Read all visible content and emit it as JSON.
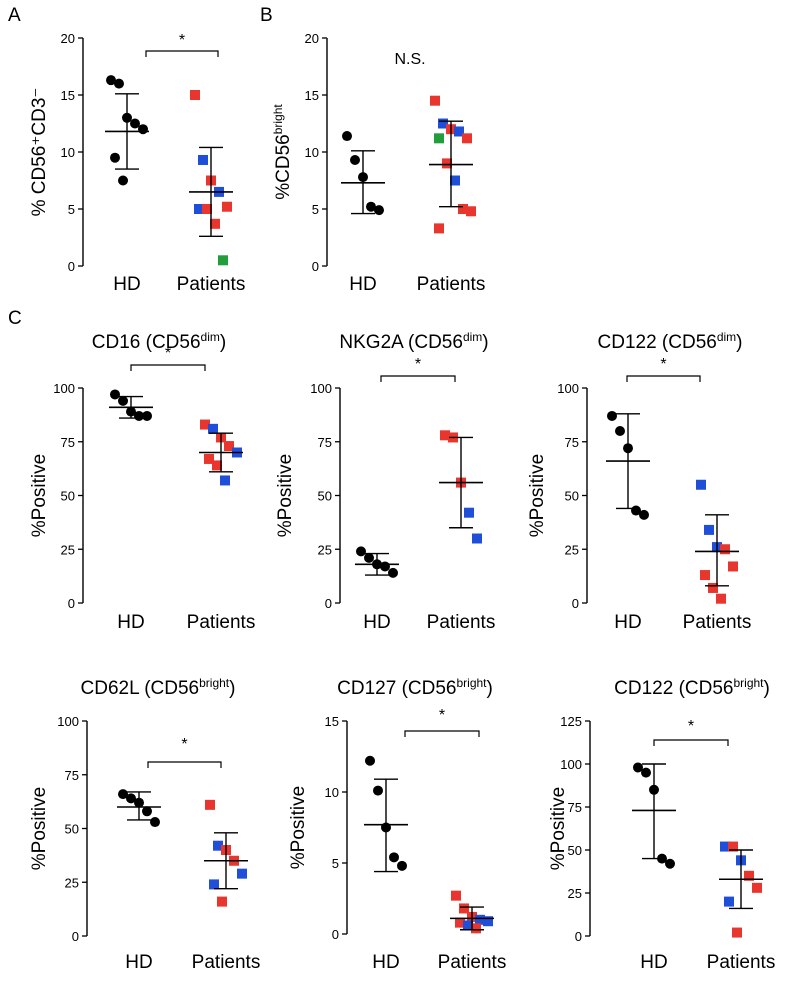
{
  "panels": [
    "A",
    "B",
    "C"
  ],
  "colors": {
    "HD": "#000000",
    "red": "#e8362e",
    "blue": "#1f4fd8",
    "green": "#1f9e3a"
  },
  "chart_data": [
    {
      "type": "scatter",
      "panel": "A",
      "title": "",
      "ylabel": "% CD56⁺CD3⁻",
      "categories": [
        "HD",
        "Patients"
      ],
      "ylim": [
        0,
        20
      ],
      "yticks": [
        0,
        5,
        10,
        15,
        20
      ],
      "significance": "*",
      "series": [
        {
          "name": "HD",
          "points": [
            {
              "v": 16.3,
              "c": "HD"
            },
            {
              "v": 16.0,
              "c": "HD"
            },
            {
              "v": 13.0,
              "c": "HD"
            },
            {
              "v": 12.5,
              "c": "HD"
            },
            {
              "v": 12.0,
              "c": "HD"
            },
            {
              "v": 9.5,
              "c": "HD"
            },
            {
              "v": 7.5,
              "c": "HD"
            }
          ],
          "mean": 11.8,
          "sd_low": 8.5,
          "sd_high": 15.1
        },
        {
          "name": "Patients",
          "points": [
            {
              "v": 15.0,
              "c": "red"
            },
            {
              "v": 9.3,
              "c": "blue"
            },
            {
              "v": 7.5,
              "c": "red"
            },
            {
              "v": 6.5,
              "c": "blue"
            },
            {
              "v": 5.2,
              "c": "red"
            },
            {
              "v": 5.0,
              "c": "blue"
            },
            {
              "v": 5.0,
              "c": "red"
            },
            {
              "v": 3.7,
              "c": "red"
            },
            {
              "v": 0.5,
              "c": "green"
            }
          ],
          "mean": 6.5,
          "sd_low": 2.6,
          "sd_high": 10.4
        }
      ]
    },
    {
      "type": "scatter",
      "panel": "B",
      "title": "",
      "ylabel": "%CD56",
      "ylabel_sup": "bright",
      "categories": [
        "HD",
        "Patients"
      ],
      "ylim": [
        0,
        20
      ],
      "yticks": [
        0,
        5,
        10,
        15,
        20
      ],
      "significance": "N.S.",
      "series": [
        {
          "name": "HD",
          "points": [
            {
              "v": 11.4,
              "c": "HD"
            },
            {
              "v": 9.3,
              "c": "HD"
            },
            {
              "v": 7.8,
              "c": "HD"
            },
            {
              "v": 5.2,
              "c": "HD"
            },
            {
              "v": 4.9,
              "c": "HD"
            }
          ],
          "mean": 7.3,
          "sd_low": 4.6,
          "sd_high": 10.1
        },
        {
          "name": "Patients",
          "points": [
            {
              "v": 14.5,
              "c": "red"
            },
            {
              "v": 12.5,
              "c": "blue"
            },
            {
              "v": 12.0,
              "c": "red"
            },
            {
              "v": 11.8,
              "c": "blue"
            },
            {
              "v": 11.2,
              "c": "red"
            },
            {
              "v": 11.2,
              "c": "green"
            },
            {
              "v": 9.0,
              "c": "red"
            },
            {
              "v": 7.5,
              "c": "blue"
            },
            {
              "v": 5.0,
              "c": "red"
            },
            {
              "v": 4.8,
              "c": "red"
            },
            {
              "v": 3.3,
              "c": "red"
            }
          ],
          "mean": 8.9,
          "sd_low": 5.2,
          "sd_high": 12.7
        }
      ]
    },
    {
      "type": "scatter",
      "panel": "C",
      "title": "CD16 (CD56",
      "title_sup": "dim",
      "title_end": ")",
      "ylabel": "%Positive",
      "categories": [
        "HD",
        "Patients"
      ],
      "ylim": [
        0,
        100
      ],
      "yticks": [
        0,
        25,
        50,
        75,
        100
      ],
      "significance": "*",
      "series": [
        {
          "name": "HD",
          "points": [
            {
              "v": 97,
              "c": "HD"
            },
            {
              "v": 94,
              "c": "HD"
            },
            {
              "v": 89,
              "c": "HD"
            },
            {
              "v": 87,
              "c": "HD"
            },
            {
              "v": 87,
              "c": "HD"
            }
          ],
          "mean": 91,
          "sd_low": 86,
          "sd_high": 96
        },
        {
          "name": "Patients",
          "points": [
            {
              "v": 83,
              "c": "red"
            },
            {
              "v": 81,
              "c": "blue"
            },
            {
              "v": 77,
              "c": "red"
            },
            {
              "v": 73,
              "c": "red"
            },
            {
              "v": 70,
              "c": "blue"
            },
            {
              "v": 67,
              "c": "red"
            },
            {
              "v": 64,
              "c": "red"
            },
            {
              "v": 57,
              "c": "blue"
            }
          ],
          "mean": 70,
          "sd_low": 61,
          "sd_high": 79
        }
      ]
    },
    {
      "type": "scatter",
      "panel": "C",
      "title": "NKG2A (CD56",
      "title_sup": "dim",
      "title_end": ")",
      "ylabel": "%Positive",
      "categories": [
        "HD",
        "Patients"
      ],
      "ylim": [
        0,
        100
      ],
      "yticks": [
        0,
        25,
        50,
        75,
        100
      ],
      "significance": "*",
      "series": [
        {
          "name": "HD",
          "points": [
            {
              "v": 24,
              "c": "HD"
            },
            {
              "v": 21,
              "c": "HD"
            },
            {
              "v": 18,
              "c": "HD"
            },
            {
              "v": 17,
              "c": "HD"
            },
            {
              "v": 14,
              "c": "HD"
            }
          ],
          "mean": 18,
          "sd_low": 13,
          "sd_high": 23
        },
        {
          "name": "Patients",
          "points": [
            {
              "v": 78,
              "c": "red"
            },
            {
              "v": 77,
              "c": "red"
            },
            {
              "v": 56,
              "c": "red"
            },
            {
              "v": 42,
              "c": "blue"
            },
            {
              "v": 30,
              "c": "blue"
            }
          ],
          "mean": 56,
          "sd_low": 35,
          "sd_high": 77
        }
      ]
    },
    {
      "type": "scatter",
      "panel": "C",
      "title": "CD122 (CD56",
      "title_sup": "dim",
      "title_end": ")",
      "ylabel": "%Positive",
      "categories": [
        "HD",
        "Patients"
      ],
      "ylim": [
        0,
        100
      ],
      "yticks": [
        0,
        25,
        50,
        75,
        100
      ],
      "significance": "*",
      "series": [
        {
          "name": "HD",
          "points": [
            {
              "v": 87,
              "c": "HD"
            },
            {
              "v": 80,
              "c": "HD"
            },
            {
              "v": 72,
              "c": "HD"
            },
            {
              "v": 43,
              "c": "HD"
            },
            {
              "v": 41,
              "c": "HD"
            }
          ],
          "mean": 66,
          "sd_low": 44,
          "sd_high": 88
        },
        {
          "name": "Patients",
          "points": [
            {
              "v": 55,
              "c": "blue"
            },
            {
              "v": 34,
              "c": "blue"
            },
            {
              "v": 26,
              "c": "blue"
            },
            {
              "v": 25,
              "c": "red"
            },
            {
              "v": 17,
              "c": "red"
            },
            {
              "v": 13,
              "c": "red"
            },
            {
              "v": 7,
              "c": "red"
            },
            {
              "v": 2,
              "c": "red"
            }
          ],
          "mean": 24,
          "sd_low": 8,
          "sd_high": 41
        }
      ]
    },
    {
      "type": "scatter",
      "panel": "C",
      "title": "CD62L (CD56",
      "title_sup": "bright",
      "title_end": ")",
      "ylabel": "%Positive",
      "categories": [
        "HD",
        "Patients"
      ],
      "ylim": [
        0,
        100
      ],
      "yticks": [
        0,
        25,
        50,
        75,
        100
      ],
      "significance": "*",
      "series": [
        {
          "name": "HD",
          "points": [
            {
              "v": 66,
              "c": "HD"
            },
            {
              "v": 64,
              "c": "HD"
            },
            {
              "v": 62,
              "c": "HD"
            },
            {
              "v": 58,
              "c": "HD"
            },
            {
              "v": 53,
              "c": "HD"
            }
          ],
          "mean": 60,
          "sd_low": 54,
          "sd_high": 67
        },
        {
          "name": "Patients",
          "points": [
            {
              "v": 61,
              "c": "red"
            },
            {
              "v": 42,
              "c": "blue"
            },
            {
              "v": 40,
              "c": "red"
            },
            {
              "v": 35,
              "c": "red"
            },
            {
              "v": 29,
              "c": "blue"
            },
            {
              "v": 24,
              "c": "blue"
            },
            {
              "v": 16,
              "c": "red"
            }
          ],
          "mean": 35,
          "sd_low": 22,
          "sd_high": 48
        }
      ]
    },
    {
      "type": "scatter",
      "panel": "C",
      "title": "CD127 (CD56",
      "title_sup": "bright",
      "title_end": ")",
      "ylabel": "%Positive",
      "categories": [
        "HD",
        "Patients"
      ],
      "ylim": [
        0,
        15
      ],
      "yticks": [
        0,
        5,
        10,
        15
      ],
      "significance": "*",
      "series": [
        {
          "name": "HD",
          "points": [
            {
              "v": 12.2,
              "c": "HD"
            },
            {
              "v": 10.1,
              "c": "HD"
            },
            {
              "v": 7.5,
              "c": "HD"
            },
            {
              "v": 5.4,
              "c": "HD"
            },
            {
              "v": 4.8,
              "c": "HD"
            }
          ],
          "mean": 7.7,
          "sd_low": 4.4,
          "sd_high": 10.9
        },
        {
          "name": "Patients",
          "points": [
            {
              "v": 2.7,
              "c": "red"
            },
            {
              "v": 1.8,
              "c": "red"
            },
            {
              "v": 1.2,
              "c": "red"
            },
            {
              "v": 1.0,
              "c": "blue"
            },
            {
              "v": 0.9,
              "c": "blue"
            },
            {
              "v": 0.8,
              "c": "red"
            },
            {
              "v": 0.6,
              "c": "blue"
            },
            {
              "v": 0.4,
              "c": "red"
            }
          ],
          "mean": 1.1,
          "sd_low": 0.3,
          "sd_high": 1.9
        }
      ]
    },
    {
      "type": "scatter",
      "panel": "C",
      "title": "CD122 (CD56",
      "title_sup": "bright",
      "title_end": ")",
      "ylabel": "%Positive",
      "categories": [
        "HD",
        "Patients"
      ],
      "ylim": [
        0,
        125
      ],
      "yticks": [
        0,
        25,
        50,
        75,
        100,
        125
      ],
      "significance": "*",
      "series": [
        {
          "name": "HD",
          "points": [
            {
              "v": 98,
              "c": "HD"
            },
            {
              "v": 95,
              "c": "HD"
            },
            {
              "v": 85,
              "c": "HD"
            },
            {
              "v": 45,
              "c": "HD"
            },
            {
              "v": 42,
              "c": "HD"
            }
          ],
          "mean": 73,
          "sd_low": 45,
          "sd_high": 100
        },
        {
          "name": "Patients",
          "points": [
            {
              "v": 52,
              "c": "blue"
            },
            {
              "v": 52,
              "c": "red"
            },
            {
              "v": 44,
              "c": "blue"
            },
            {
              "v": 35,
              "c": "red"
            },
            {
              "v": 28,
              "c": "red"
            },
            {
              "v": 20,
              "c": "blue"
            },
            {
              "v": 2,
              "c": "red"
            }
          ],
          "mean": 33,
          "sd_low": 16,
          "sd_high": 50
        }
      ]
    }
  ]
}
